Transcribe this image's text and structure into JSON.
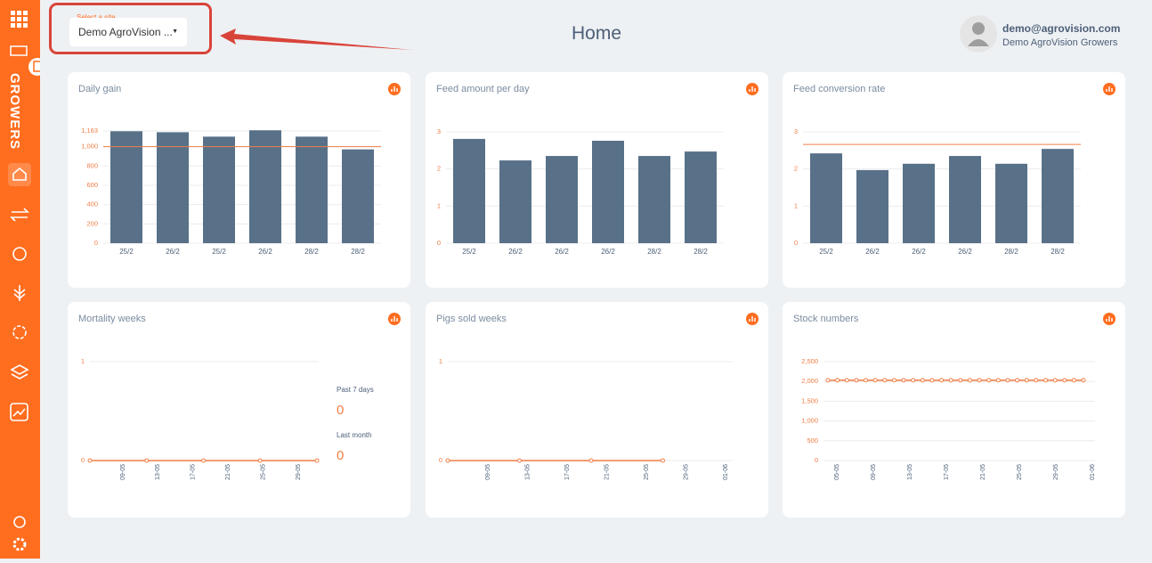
{
  "sidebar": {
    "brand": "GROWERS"
  },
  "site_select": {
    "label": "Select a site",
    "value": "Demo AgroVision ..."
  },
  "header": {
    "title": "Home"
  },
  "user": {
    "email": "demo@agrovision.com",
    "org": "Demo AgroVision Growers"
  },
  "charts": [
    {
      "type": "bar",
      "title": "Daily gain",
      "categories": [
        "25/2",
        "26/2",
        "25/2",
        "26/2",
        "28/2",
        "28/2"
      ],
      "values": [
        1160,
        1150,
        1104,
        1170,
        1104,
        972
      ],
      "color": "#587189",
      "reference": 1000,
      "reference_color": "#f07d45",
      "ylim": [
        0,
        1163
      ],
      "yticks": [
        0,
        200,
        400,
        600,
        800,
        {
          "value": 1000,
          "label": "1,000"
        },
        {
          "value": 1163,
          "label": "1,163"
        }
      ]
    },
    {
      "type": "bar",
      "title": "Feed amount per day",
      "categories": [
        "25/2",
        "26/2",
        "26/2",
        "26/2",
        "28/2",
        "28/2"
      ],
      "values": [
        2.81,
        2.23,
        2.35,
        2.76,
        2.35,
        2.47
      ],
      "color": "#587189",
      "ylim": [
        0,
        3
      ],
      "yticks": [
        0,
        1,
        2,
        3
      ]
    },
    {
      "type": "bar",
      "title": "Feed conversion rate",
      "categories": [
        "25/2",
        "26/2",
        "26/2",
        "26/2",
        "28/2",
        "28/2"
      ],
      "values": [
        2.42,
        1.97,
        2.14,
        2.35,
        2.14,
        2.54
      ],
      "color": "#587189",
      "reference": 2.66,
      "reference_color": "#f07d45",
      "ylim": [
        0,
        3
      ],
      "yticks": [
        0,
        1,
        2,
        3
      ]
    },
    {
      "type": "line",
      "title": "Mortality weeks",
      "x_labels": [
        "09-05",
        "13-05",
        "17-05",
        "21-05",
        "25-05",
        "29-05"
      ],
      "values": [
        0,
        0,
        0,
        0,
        0
      ],
      "color": "#f07d45",
      "ylim": [
        0,
        1
      ],
      "yticks": [
        0,
        1
      ],
      "stats": [
        {
          "label": "Past 7 days",
          "value": 0
        },
        {
          "label": "Last month",
          "value": 0
        }
      ]
    },
    {
      "type": "line",
      "title": "Pigs sold weeks",
      "x_labels": [
        "09-05",
        "13-05",
        "17-05",
        "21-05",
        "25-05",
        "29-05",
        "01-06"
      ],
      "values": [
        0,
        0,
        0,
        0,
        null
      ],
      "color": "#f07d45",
      "ylim": [
        0,
        1
      ],
      "yticks": [
        0,
        1
      ]
    },
    {
      "type": "line",
      "title": "Stock numbers",
      "x_labels": [
        "05-05",
        "09-05",
        "13-05",
        "17-05",
        "21-05",
        "25-05",
        "29-05",
        "01-06"
      ],
      "values": [
        2030,
        2030,
        2030,
        2030,
        2030,
        2030,
        2030,
        2030,
        2030,
        2030,
        2030,
        2030,
        2030,
        2030,
        2030,
        2030,
        2030,
        2030,
        2030,
        2030,
        2030,
        2030,
        2030,
        2030,
        2030,
        2030,
        2030,
        2030
      ],
      "color": "#f07d45",
      "ylim": [
        0,
        2500
      ],
      "yticks": [
        0,
        500,
        {
          "value": 1000,
          "label": "1,000"
        },
        {
          "value": 1500,
          "label": "1,500"
        },
        {
          "value": 2000,
          "label": "2,000"
        },
        {
          "value": 2500,
          "label": "2,500"
        }
      ]
    }
  ]
}
